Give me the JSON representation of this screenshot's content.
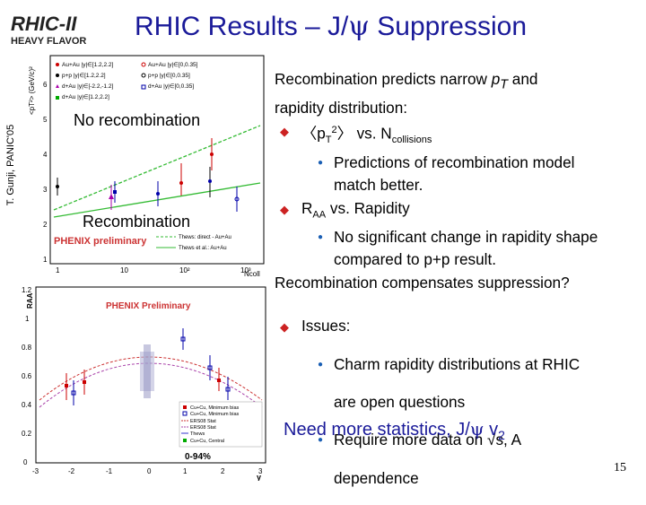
{
  "logo": {
    "top": "RHIC-II",
    "bottom": "HEAVY FLAVOR"
  },
  "title": {
    "prefix": "RHIC Results – J/",
    "psi": "ψ",
    "suffix": " Suppression"
  },
  "credit": "T. Gunji, PANIC'05",
  "top_plot": {
    "no_recomb_label": "No recombination",
    "recomb_label": "Recombination",
    "brand": "PHENIX preliminary",
    "ylabel": "<pT²> (GeV/c)²",
    "xlabel": "Ncoll",
    "legend": [
      "Au+Au |y|∈[1.2,2.2]",
      "p+p |y|∈[1.2,2.2]",
      "d+Au |y|∈[-2.2,-1.2]",
      "d+Au |y|∈[1.2,2.2]",
      "Au+Au |y|∈[0,0.35]",
      "p+p |y|∈[0,0.35]",
      "d+Au |y|∈[0,0.35]"
    ],
    "line_legend": [
      "Thews et al.: Au+Au",
      "Thews: direct - Au+Au"
    ],
    "yticks": [
      "1",
      "2",
      "3",
      "4",
      "5",
      "6"
    ],
    "xticks": [
      "1",
      "10",
      "10²",
      "10³"
    ]
  },
  "bottom_plot": {
    "brand": "PHENIX Preliminary",
    "ylabel": "RAA",
    "xlabel": "y",
    "yticks": [
      "0",
      "0.2",
      "0.4",
      "0.6",
      "0.8",
      "1",
      "1.2"
    ],
    "xticks": [
      "-3",
      "-2",
      "-1",
      "0",
      "1",
      "2",
      "3"
    ],
    "centrality": "0-94%",
    "legend": [
      "Cu+Cu, Minimum bias",
      "Cu+Cu, Minimum bias",
      "ERS08 Stat",
      "ERS08 Stat",
      "Thews",
      "Cu+Cu, Central"
    ]
  },
  "right": {
    "intro_a": "Recombination predicts narrow ",
    "intro_pt": "p",
    "intro_pt_sub": "T",
    "intro_b": " and",
    "intro_2": "rapidity distribution:",
    "b1_a": "〈p",
    "b1_sub": "T",
    "b1_sup": "2",
    "b1_b": "〉 vs. N",
    "b1_sub2": "collisions",
    "b1_s1": "Predictions of recombination model",
    "b1_s1b": "match better.",
    "b2_a": "R",
    "b2_sub": "AA",
    "b2_b": " vs. Rapidity",
    "b2_s1": "No significant change in rapidity shape",
    "b2_s1b": "compared to p+p result.",
    "conclusion": "Recombination compensates suppression?",
    "issues": "Issues:",
    "i1": "Charm rapidity distributions at RHIC",
    "i1b": "are open questions",
    "i2": "Require more data on √s, A",
    "i2b": "dependence"
  },
  "need": {
    "text": "Need more statistics, J/",
    "psi": "ψ",
    "v": " v",
    "sub": "2"
  },
  "page_number": "15",
  "colors": {
    "title": "#1a1a99",
    "bullet": "#cc2222",
    "subbullet": "#1a5fb4"
  }
}
